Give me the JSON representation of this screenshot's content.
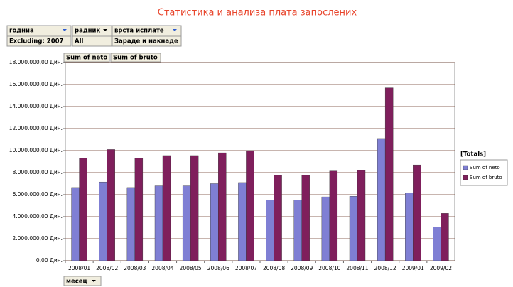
{
  "chart_data": {
    "type": "bar",
    "title": "Статистика и анализа плата запослених",
    "filters": [
      {
        "field": "годниа",
        "value": "Excluding: 2007"
      },
      {
        "field": "радник",
        "value": "All"
      },
      {
        "field": "врста исплате",
        "value": "Зараде и накнаде"
      }
    ],
    "legend_title": "[Totals]",
    "x_field": "месец",
    "categories": [
      "2008/01",
      "2008/02",
      "2008/03",
      "2008/04",
      "2008/05",
      "2008/06",
      "2008/07",
      "2008/08",
      "2008/09",
      "2008/10",
      "2008/11",
      "2008/12",
      "2009/01",
      "2009/02"
    ],
    "series": [
      {
        "name": "Sum of neto",
        "color": "#7f7fd4",
        "values": [
          6650000,
          7150000,
          6650000,
          6800000,
          6800000,
          7000000,
          7100000,
          5500000,
          5500000,
          5800000,
          5850000,
          11100000,
          6150000,
          3050000
        ]
      },
      {
        "name": "Sum of bruto",
        "color": "#7f1f5c",
        "values": [
          9300000,
          10100000,
          9300000,
          9550000,
          9550000,
          9800000,
          10000000,
          7750000,
          7750000,
          8150000,
          8200000,
          15700000,
          8700000,
          4300000
        ]
      }
    ],
    "ylim": [
      0,
      18000000
    ],
    "yticks": [
      {
        "value": 0,
        "label": "0,00 Дин."
      },
      {
        "value": 2000000,
        "label": "2.000.000,00 Дин."
      },
      {
        "value": 4000000,
        "label": "4.000.000,00 Дин."
      },
      {
        "value": 6000000,
        "label": "6.000.000,00 Дин."
      },
      {
        "value": 8000000,
        "label": "8.000.000,00 Дин."
      },
      {
        "value": 10000000,
        "label": "10.000.000,00 Дин."
      },
      {
        "value": 12000000,
        "label": "12.000.000,00 Дин."
      },
      {
        "value": 14000000,
        "label": "14.000.000,00 Дин."
      },
      {
        "value": 16000000,
        "label": "16.000.000,00 Дин."
      },
      {
        "value": 18000000,
        "label": "18.000.000,00 Дин."
      }
    ],
    "grid": true,
    "legend": "right"
  }
}
